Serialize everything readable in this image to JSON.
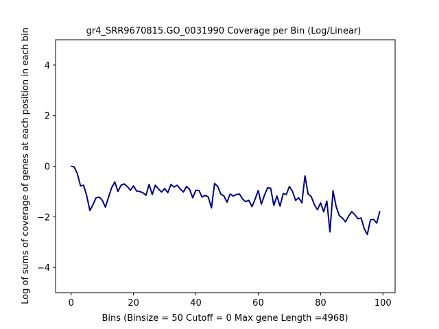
{
  "chart_data": {
    "type": "line",
    "title": "gr4_SRR9670815.GO_0031990 Coverage per Bin (Log/Linear)",
    "xlabel": "Bins  (Binsize = 50 Cutoff = 0 Max gene Length =4968)",
    "ylabel": "Log of sums of coverage of genes at each position in each bin",
    "xlim": [
      -5,
      103.9
    ],
    "ylim": [
      -5,
      5
    ],
    "xticks": [
      0,
      20,
      40,
      60,
      80,
      100
    ],
    "yticks": [
      -4,
      -2,
      0,
      2,
      4
    ],
    "grid": false,
    "color": "#000080",
    "series": [
      {
        "x": [
          0,
          1,
          2,
          3,
          4,
          5,
          6,
          7,
          8,
          9,
          10,
          11,
          12,
          13,
          14,
          15,
          16,
          17,
          18,
          19,
          20,
          21,
          22,
          23,
          24,
          25,
          26,
          27,
          28,
          29,
          30,
          31,
          32,
          33,
          34,
          35,
          36,
          37,
          38,
          39,
          40,
          41,
          42,
          43,
          44,
          45,
          46,
          47,
          48,
          49,
          50,
          51,
          52,
          53,
          54,
          55,
          56,
          57,
          58,
          59,
          60,
          61,
          62,
          63,
          64,
          65,
          66,
          67,
          68,
          69,
          70,
          71,
          72,
          73,
          74,
          75,
          76,
          77,
          78,
          79,
          80,
          81,
          82,
          83,
          84,
          85,
          86,
          87,
          88,
          89,
          90,
          91,
          92,
          93,
          94,
          95,
          96,
          97,
          98,
          99
        ],
        "values": [
          0.0,
          -0.03,
          -0.3,
          -0.78,
          -0.75,
          -1.18,
          -1.75,
          -1.52,
          -1.25,
          -1.22,
          -1.35,
          -1.62,
          -1.22,
          -0.85,
          -0.62,
          -1.0,
          -0.75,
          -0.7,
          -0.8,
          -0.95,
          -0.78,
          -0.98,
          -1.0,
          -1.05,
          -1.15,
          -0.72,
          -1.12,
          -0.75,
          -0.9,
          -1.02,
          -0.88,
          -1.05,
          -0.72,
          -0.82,
          -0.75,
          -0.9,
          -1.02,
          -0.8,
          -0.92,
          -1.25,
          -0.95,
          -0.96,
          -1.22,
          -1.15,
          -1.22,
          -1.65,
          -0.68,
          -0.8,
          -1.1,
          -1.18,
          -1.42,
          -1.1,
          -1.18,
          -1.12,
          -1.1,
          -1.3,
          -1.4,
          -1.35,
          -1.6,
          -1.3,
          -0.96,
          -1.5,
          -1.15,
          -0.85,
          -0.87,
          -1.55,
          -1.18,
          -1.58,
          -1.08,
          -1.12,
          -0.8,
          -1.0,
          -1.35,
          -1.25,
          -1.45,
          -0.38,
          -1.1,
          -1.2,
          -1.52,
          -1.72,
          -1.45,
          -1.8,
          -1.38,
          -2.6,
          -0.97,
          -1.6,
          -1.95,
          -2.05,
          -2.2,
          -1.97,
          -1.8,
          -1.92,
          -2.08,
          -2.05,
          -2.47,
          -2.7,
          -2.12,
          -2.1,
          -2.25,
          -1.78
        ]
      }
    ]
  }
}
